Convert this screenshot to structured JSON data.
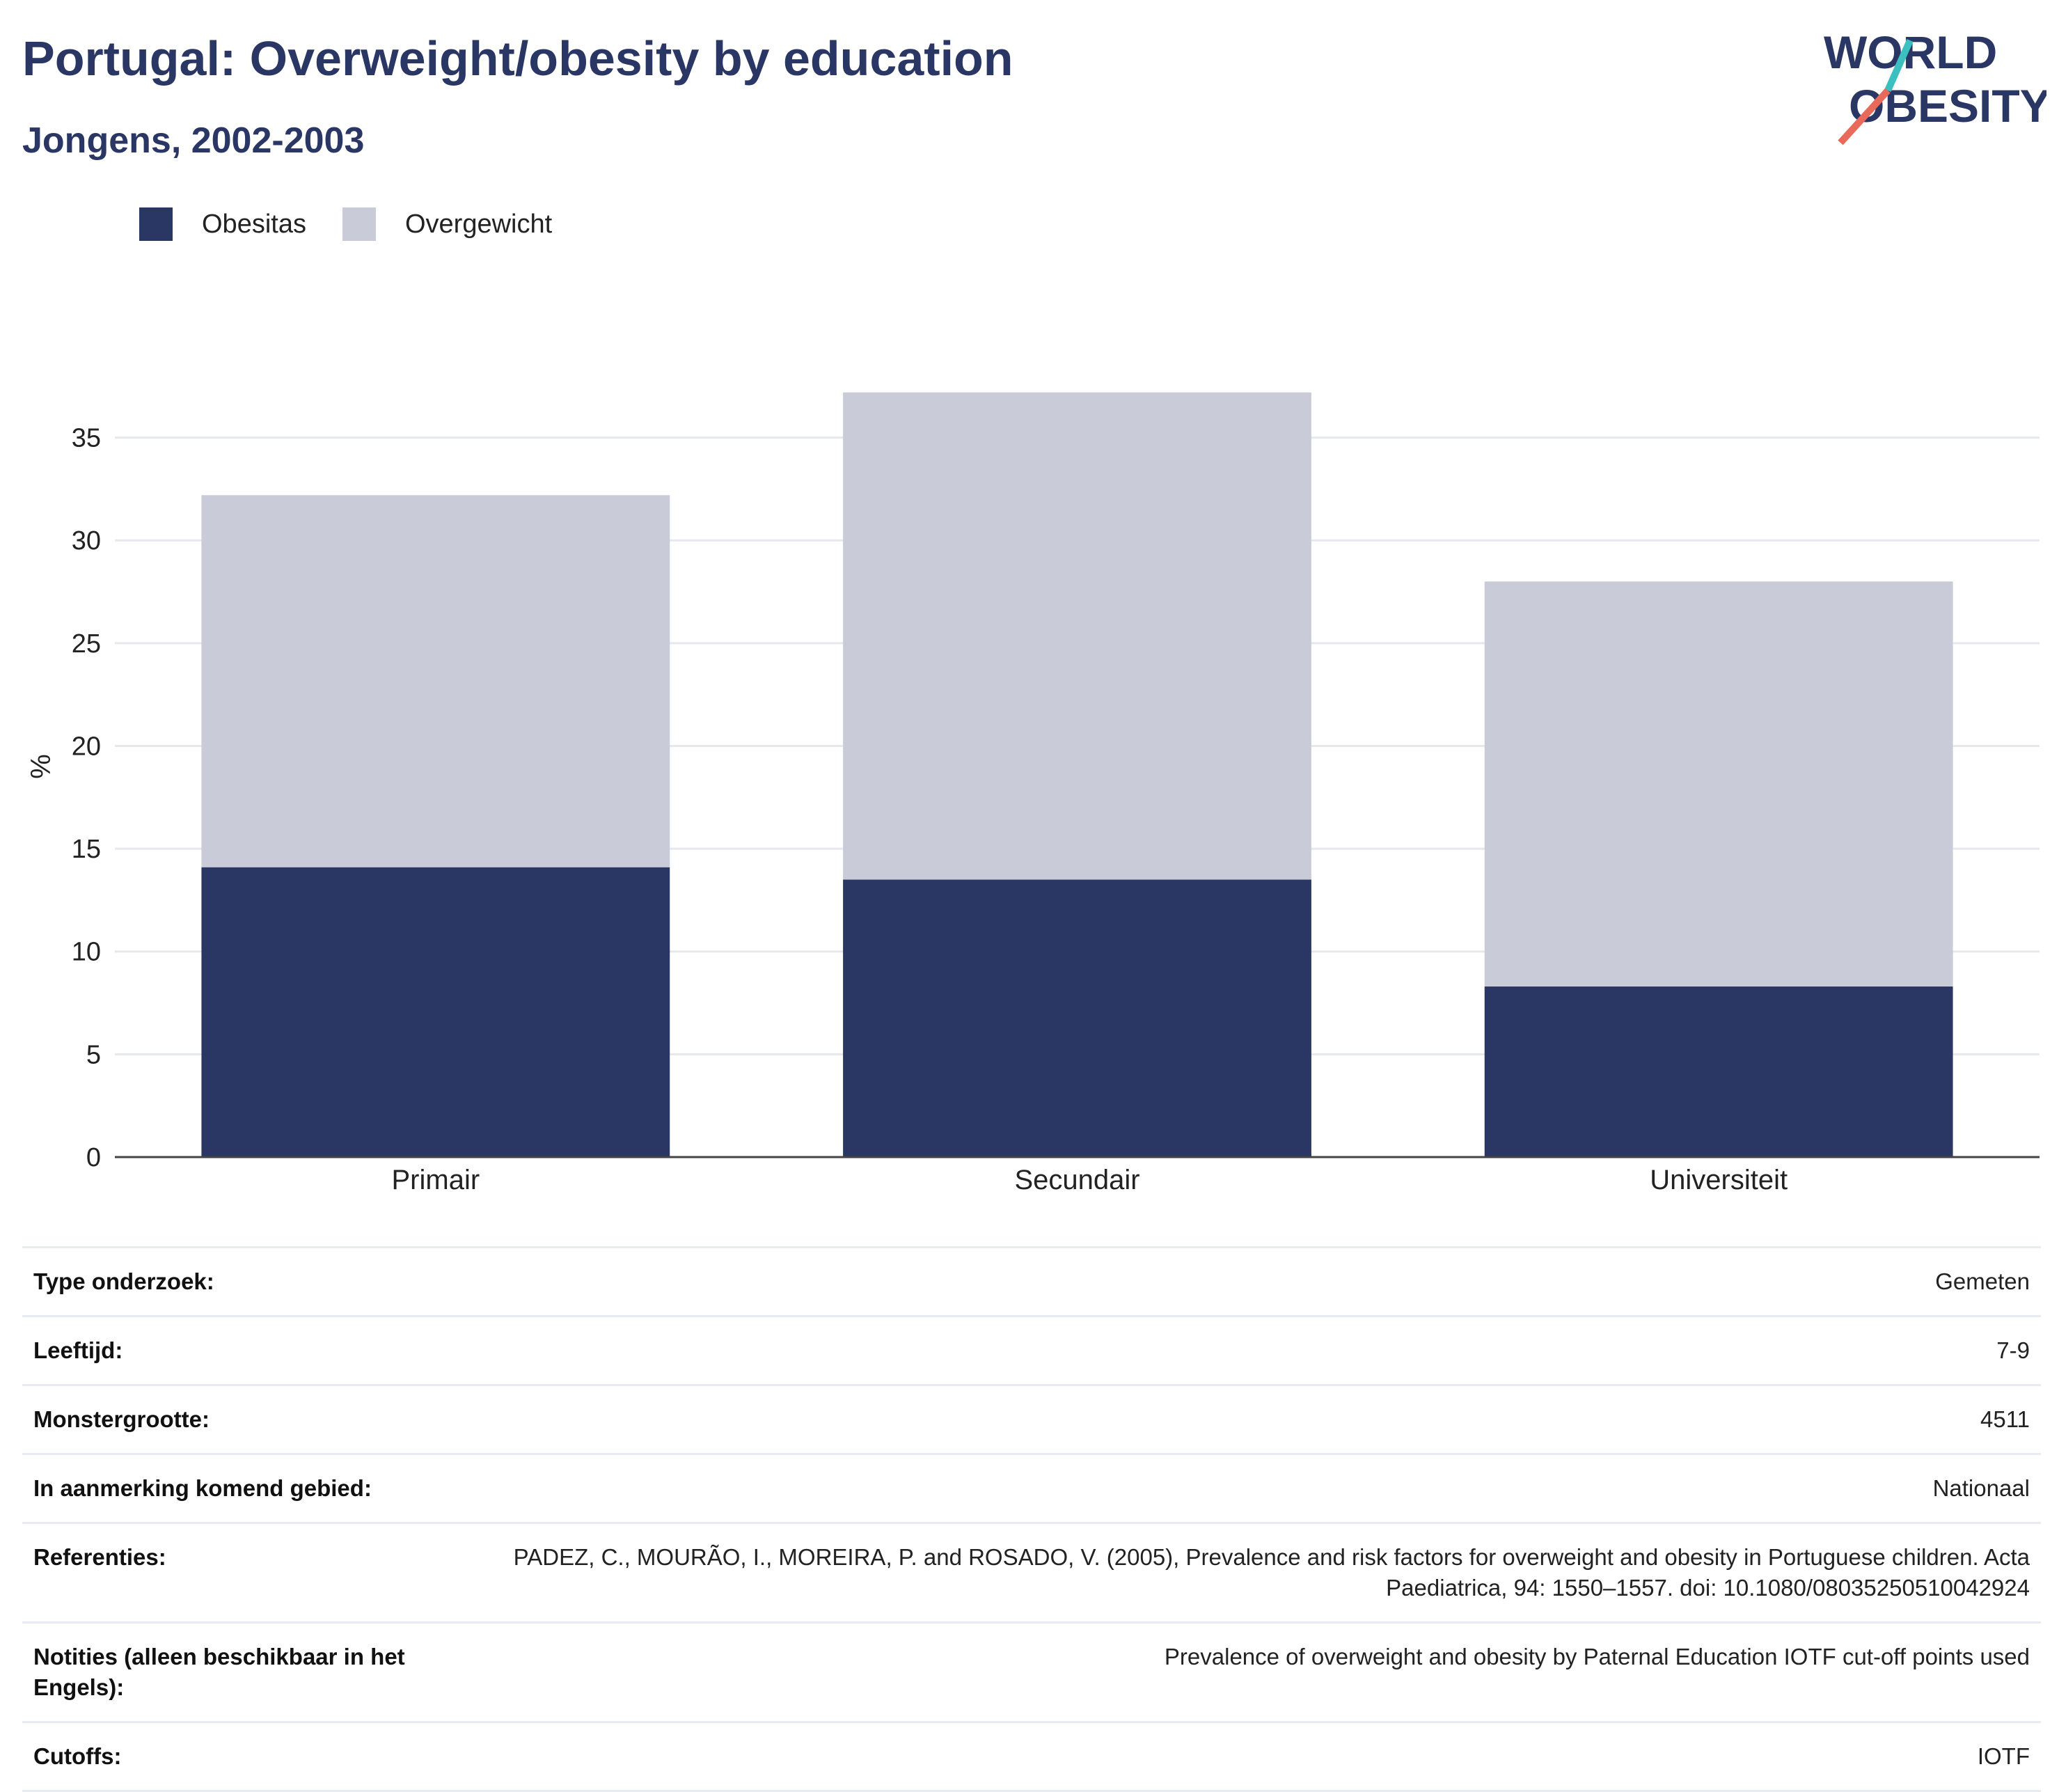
{
  "header": {
    "title": "Portugal: Overweight/obesity by education",
    "subtitle": "Jongens, 2002-2003"
  },
  "logo": {
    "line1": "WORLD",
    "line2": "OBESITY"
  },
  "legend": [
    {
      "label": "Obesitas",
      "color": "#2a3663"
    },
    {
      "label": "Overgewicht",
      "color": "#c9ccd8"
    }
  ],
  "chart_data": {
    "type": "bar",
    "stacked": true,
    "categories": [
      "Primair",
      "Secundair",
      "Universiteit"
    ],
    "series": [
      {
        "name": "Obesitas",
        "values": [
          14.1,
          13.5,
          8.3
        ],
        "color": "#2a3663"
      },
      {
        "name": "Overgewicht",
        "values": [
          18.1,
          23.7,
          19.7
        ],
        "color": "#c9ccd8"
      }
    ],
    "xlabel": "",
    "ylabel": "%",
    "ylim": [
      0,
      38
    ],
    "yticks": [
      0,
      5,
      10,
      15,
      20,
      25,
      30,
      35
    ],
    "grid": true,
    "legend_position": "top-left"
  },
  "info": [
    {
      "key": "Type onderzoek:",
      "value": "Gemeten"
    },
    {
      "key": "Leeftijd:",
      "value": "7-9"
    },
    {
      "key": "Monstergrootte:",
      "value": "4511"
    },
    {
      "key": "In aanmerking komend gebied:",
      "value": "Nationaal"
    },
    {
      "key": "Referenties:",
      "value": "PADEZ, C., MOURÃO, I., MOREIRA, P. and ROSADO, V. (2005), Prevalence and risk factors for overweight and obesity in Portuguese children. Acta Paediatrica, 94: 1550–1557. doi: 10.1080/08035250510042924"
    },
    {
      "key": "Notities (alleen beschikbaar in het Engels):",
      "value": "Prevalence of overweight and obesity by Paternal Education IOTF cut-off points used"
    },
    {
      "key": "Cutoffs:",
      "value": "IOTF"
    }
  ]
}
